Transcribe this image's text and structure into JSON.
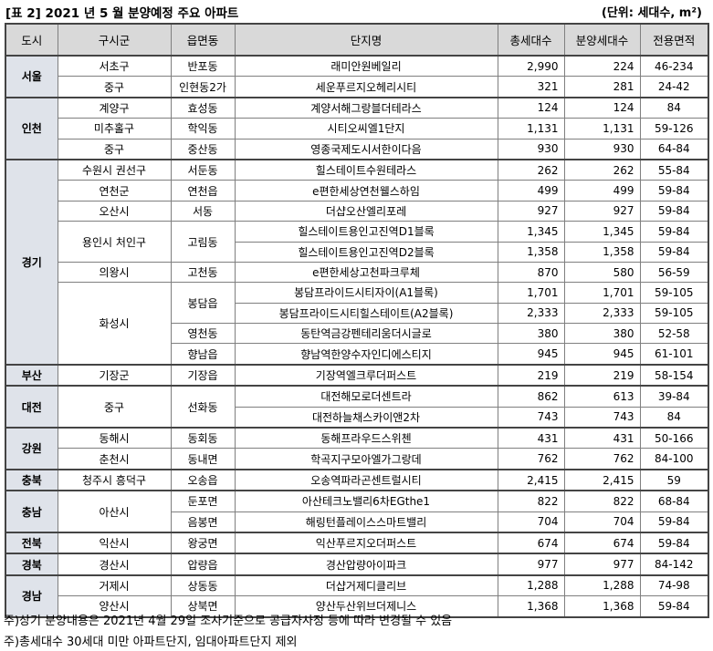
{
  "header": {
    "title": "[표 2] 2021 년 5 월 분양예정 주요 아파트",
    "unit": "(단위: 세대수, m²)"
  },
  "table": {
    "columns": [
      "도시",
      "구시군",
      "읍면동",
      "단지명",
      "총세대수",
      "분양세대수",
      "전용면적"
    ],
    "groups": [
      {
        "city": "서울",
        "districts": [
          {
            "name": "서초구",
            "towns": [
              {
                "name": "반포동",
                "complexes": [
                  [
                    "래미안원베일리",
                    "2,990",
                    "224",
                    "46-234"
                  ]
                ]
              }
            ]
          },
          {
            "name": "중구",
            "towns": [
              {
                "name": "인현동2가",
                "complexes": [
                  [
                    "세운푸르지오헤리시티",
                    "321",
                    "281",
                    "24-42"
                  ]
                ]
              }
            ]
          }
        ]
      },
      {
        "city": "인천",
        "districts": [
          {
            "name": "계양구",
            "towns": [
              {
                "name": "효성동",
                "complexes": [
                  [
                    "계양서해그랑블더테라스",
                    "124",
                    "124",
                    "84"
                  ]
                ]
              }
            ]
          },
          {
            "name": "미추홀구",
            "towns": [
              {
                "name": "학익동",
                "complexes": [
                  [
                    "시티오씨엘1단지",
                    "1,131",
                    "1,131",
                    "59-126"
                  ]
                ]
              }
            ]
          },
          {
            "name": "중구",
            "towns": [
              {
                "name": "중산동",
                "complexes": [
                  [
                    "영종국제도시서한이다음",
                    "930",
                    "930",
                    "64-84"
                  ]
                ]
              }
            ]
          }
        ]
      },
      {
        "city": "경기",
        "districts": [
          {
            "name": "수원시 권선구",
            "towns": [
              {
                "name": "서둔동",
                "complexes": [
                  [
                    "힐스테이트수원테라스",
                    "262",
                    "262",
                    "55-84"
                  ]
                ]
              }
            ]
          },
          {
            "name": "연천군",
            "towns": [
              {
                "name": "연천읍",
                "complexes": [
                  [
                    "e편한세상연천웰스하임",
                    "499",
                    "499",
                    "59-84"
                  ]
                ]
              }
            ]
          },
          {
            "name": "오산시",
            "towns": [
              {
                "name": "서동",
                "complexes": [
                  [
                    "더샵오산엘리포레",
                    "927",
                    "927",
                    "59-84"
                  ]
                ]
              }
            ]
          },
          {
            "name": "용인시 처인구",
            "towns": [
              {
                "name": "고림동",
                "complexes": [
                  [
                    "힐스테이트용인고진역D1블록",
                    "1,345",
                    "1,345",
                    "59-84"
                  ],
                  [
                    "힐스테이트용인고진역D2블록",
                    "1,358",
                    "1,358",
                    "59-84"
                  ]
                ]
              }
            ]
          },
          {
            "name": "의왕시",
            "towns": [
              {
                "name": "고천동",
                "complexes": [
                  [
                    "e편한세상고천파크루체",
                    "870",
                    "580",
                    "56-59"
                  ]
                ]
              }
            ]
          },
          {
            "name": "화성시",
            "towns": [
              {
                "name": "봉담읍",
                "complexes": [
                  [
                    "봉담프라이드시티자이(A1블록)",
                    "1,701",
                    "1,701",
                    "59-105"
                  ],
                  [
                    "봉담프라이드시티힐스테이트(A2블록)",
                    "2,333",
                    "2,333",
                    "59-105"
                  ]
                ]
              },
              {
                "name": "영천동",
                "complexes": [
                  [
                    "동탄역금강펜테리움더시글로",
                    "380",
                    "380",
                    "52-58"
                  ]
                ]
              },
              {
                "name": "향남읍",
                "complexes": [
                  [
                    "향남역한양수자인디에스티지",
                    "945",
                    "945",
                    "61-101"
                  ]
                ]
              }
            ]
          }
        ]
      },
      {
        "city": "부산",
        "districts": [
          {
            "name": "기장군",
            "towns": [
              {
                "name": "기장읍",
                "complexes": [
                  [
                    "기장역엘크루더퍼스트",
                    "219",
                    "219",
                    "58-154"
                  ]
                ]
              }
            ]
          }
        ]
      },
      {
        "city": "대전",
        "districts": [
          {
            "name": "중구",
            "towns": [
              {
                "name": "선화동",
                "complexes": [
                  [
                    "대전해모로더센트라",
                    "862",
                    "613",
                    "39-84"
                  ],
                  [
                    "대전하늘채스카이앤2차",
                    "743",
                    "743",
                    "84"
                  ]
                ]
              }
            ]
          }
        ]
      },
      {
        "city": "강원",
        "districts": [
          {
            "name": "동해시",
            "towns": [
              {
                "name": "동회동",
                "complexes": [
                  [
                    "동해프라우드스위첸",
                    "431",
                    "431",
                    "50-166"
                  ]
                ]
              }
            ]
          },
          {
            "name": "춘천시",
            "towns": [
              {
                "name": "동내면",
                "complexes": [
                  [
                    "학곡지구모아엘가그랑데",
                    "762",
                    "762",
                    "84-100"
                  ]
                ]
              }
            ]
          }
        ]
      },
      {
        "city": "충북",
        "districts": [
          {
            "name": "청주시 흥덕구",
            "towns": [
              {
                "name": "오송읍",
                "complexes": [
                  [
                    "오송역파라곤센트럴시티",
                    "2,415",
                    "2,415",
                    "59"
                  ]
                ]
              }
            ]
          }
        ]
      },
      {
        "city": "충남",
        "districts": [
          {
            "name": "아산시",
            "towns": [
              {
                "name": "둔포면",
                "complexes": [
                  [
                    "아산테크노밸리6차EGthe1",
                    "822",
                    "822",
                    "68-84"
                  ]
                ]
              },
              {
                "name": "음봉면",
                "complexes": [
                  [
                    "해링턴플레이스스마트밸리",
                    "704",
                    "704",
                    "59-84"
                  ]
                ]
              }
            ]
          }
        ]
      },
      {
        "city": "전북",
        "districts": [
          {
            "name": "익산시",
            "towns": [
              {
                "name": "왕궁면",
                "complexes": [
                  [
                    "익산푸르지오더퍼스트",
                    "674",
                    "674",
                    "59-84"
                  ]
                ]
              }
            ]
          }
        ]
      },
      {
        "city": "경북",
        "districts": [
          {
            "name": "경산시",
            "towns": [
              {
                "name": "압량읍",
                "complexes": [
                  [
                    "경산압량아이파크",
                    "977",
                    "977",
                    "84-142"
                  ]
                ]
              }
            ]
          }
        ]
      },
      {
        "city": "경남",
        "districts": [
          {
            "name": "거제시",
            "towns": [
              {
                "name": "상동동",
                "complexes": [
                  [
                    "더샵거제디클리브",
                    "1,288",
                    "1,288",
                    "74-98"
                  ]
                ]
              }
            ]
          },
          {
            "name": "양산시",
            "towns": [
              {
                "name": "상북면",
                "complexes": [
                  [
                    "양산두산위브더제니스",
                    "1,368",
                    "1,368",
                    "59-84"
                  ]
                ]
              }
            ]
          }
        ]
      }
    ]
  },
  "notes": [
    "주)상기 분양내용은 2021년 4월 29일 조사기준으로 공급자사정 등에 따라 변경될 수 있음",
    "주)총세대수 30세대 미만 아파트단지, 임대아파트단지 제외"
  ]
}
